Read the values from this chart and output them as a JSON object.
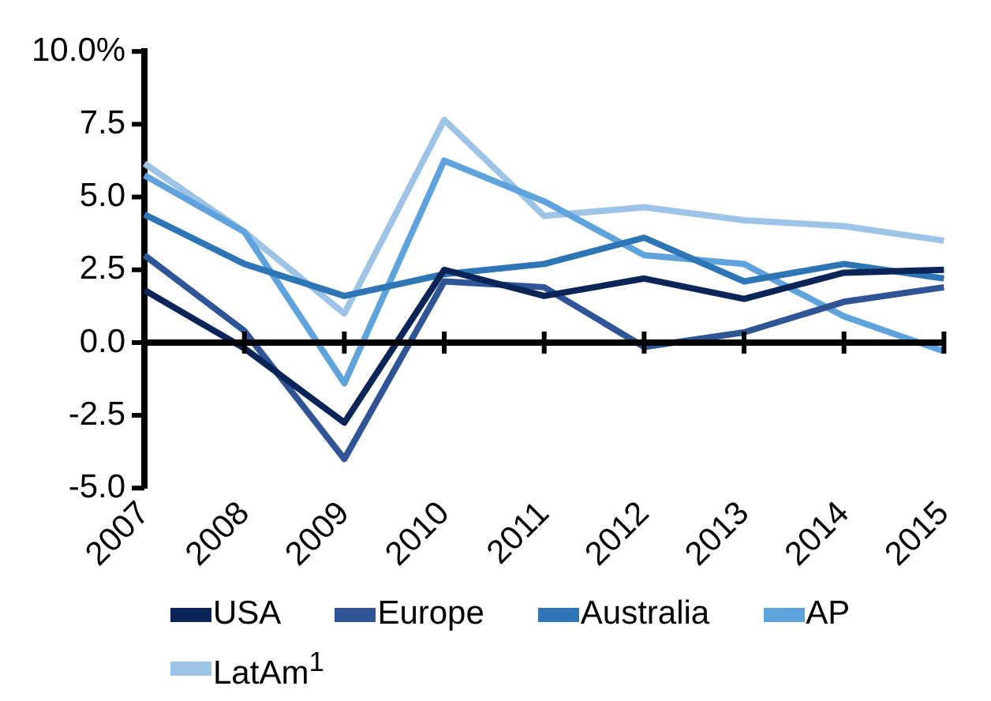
{
  "chart_data": {
    "type": "line",
    "categories": [
      "2007",
      "2008",
      "2009",
      "2010",
      "2011",
      "2012",
      "2013",
      "2014",
      "2015"
    ],
    "series": [
      {
        "name": "USA",
        "color": "#0b2559",
        "values": [
          1.8,
          -0.2,
          -2.75,
          2.5,
          1.6,
          2.2,
          1.5,
          2.4,
          2.5
        ]
      },
      {
        "name": "Europe",
        "color": "#2f5597",
        "values": [
          3.0,
          0.4,
          -4.0,
          2.1,
          1.9,
          -0.15,
          0.35,
          1.4,
          1.9
        ]
      },
      {
        "name": "Australia",
        "color": "#2e75b6",
        "values": [
          4.4,
          2.7,
          1.6,
          2.35,
          2.7,
          3.6,
          2.1,
          2.7,
          2.2
        ]
      },
      {
        "name": "AP",
        "color": "#5fa3dd",
        "values": [
          5.75,
          3.8,
          -1.4,
          6.25,
          4.85,
          3.0,
          2.7,
          0.9,
          -0.3
        ]
      },
      {
        "name": "LatAm$^{1}$",
        "color": "#9dc3e6",
        "values": [
          6.15,
          3.8,
          1.0,
          7.65,
          4.35,
          4.65,
          4.2,
          4.0,
          3.5
        ]
      }
    ],
    "ylim": [
      -5,
      10
    ],
    "yticks": [
      {
        "value": -5,
        "label": "-5.0"
      },
      {
        "value": -2.5,
        "label": "-2.5"
      },
      {
        "value": 0,
        "label": "0.0"
      },
      {
        "value": 2.5,
        "label": "2.5"
      },
      {
        "value": 5,
        "label": "5.0"
      },
      {
        "value": 7.5,
        "label": "7.5"
      },
      {
        "value": 10,
        "label": "10.0%"
      }
    ],
    "ref_lines": [
      {
        "axis": "y",
        "value": 0,
        "color": "#000000",
        "line_style": "solid"
      }
    ],
    "grid": false,
    "legend": "bottom",
    "marker": "none",
    "line_style": "solid"
  }
}
